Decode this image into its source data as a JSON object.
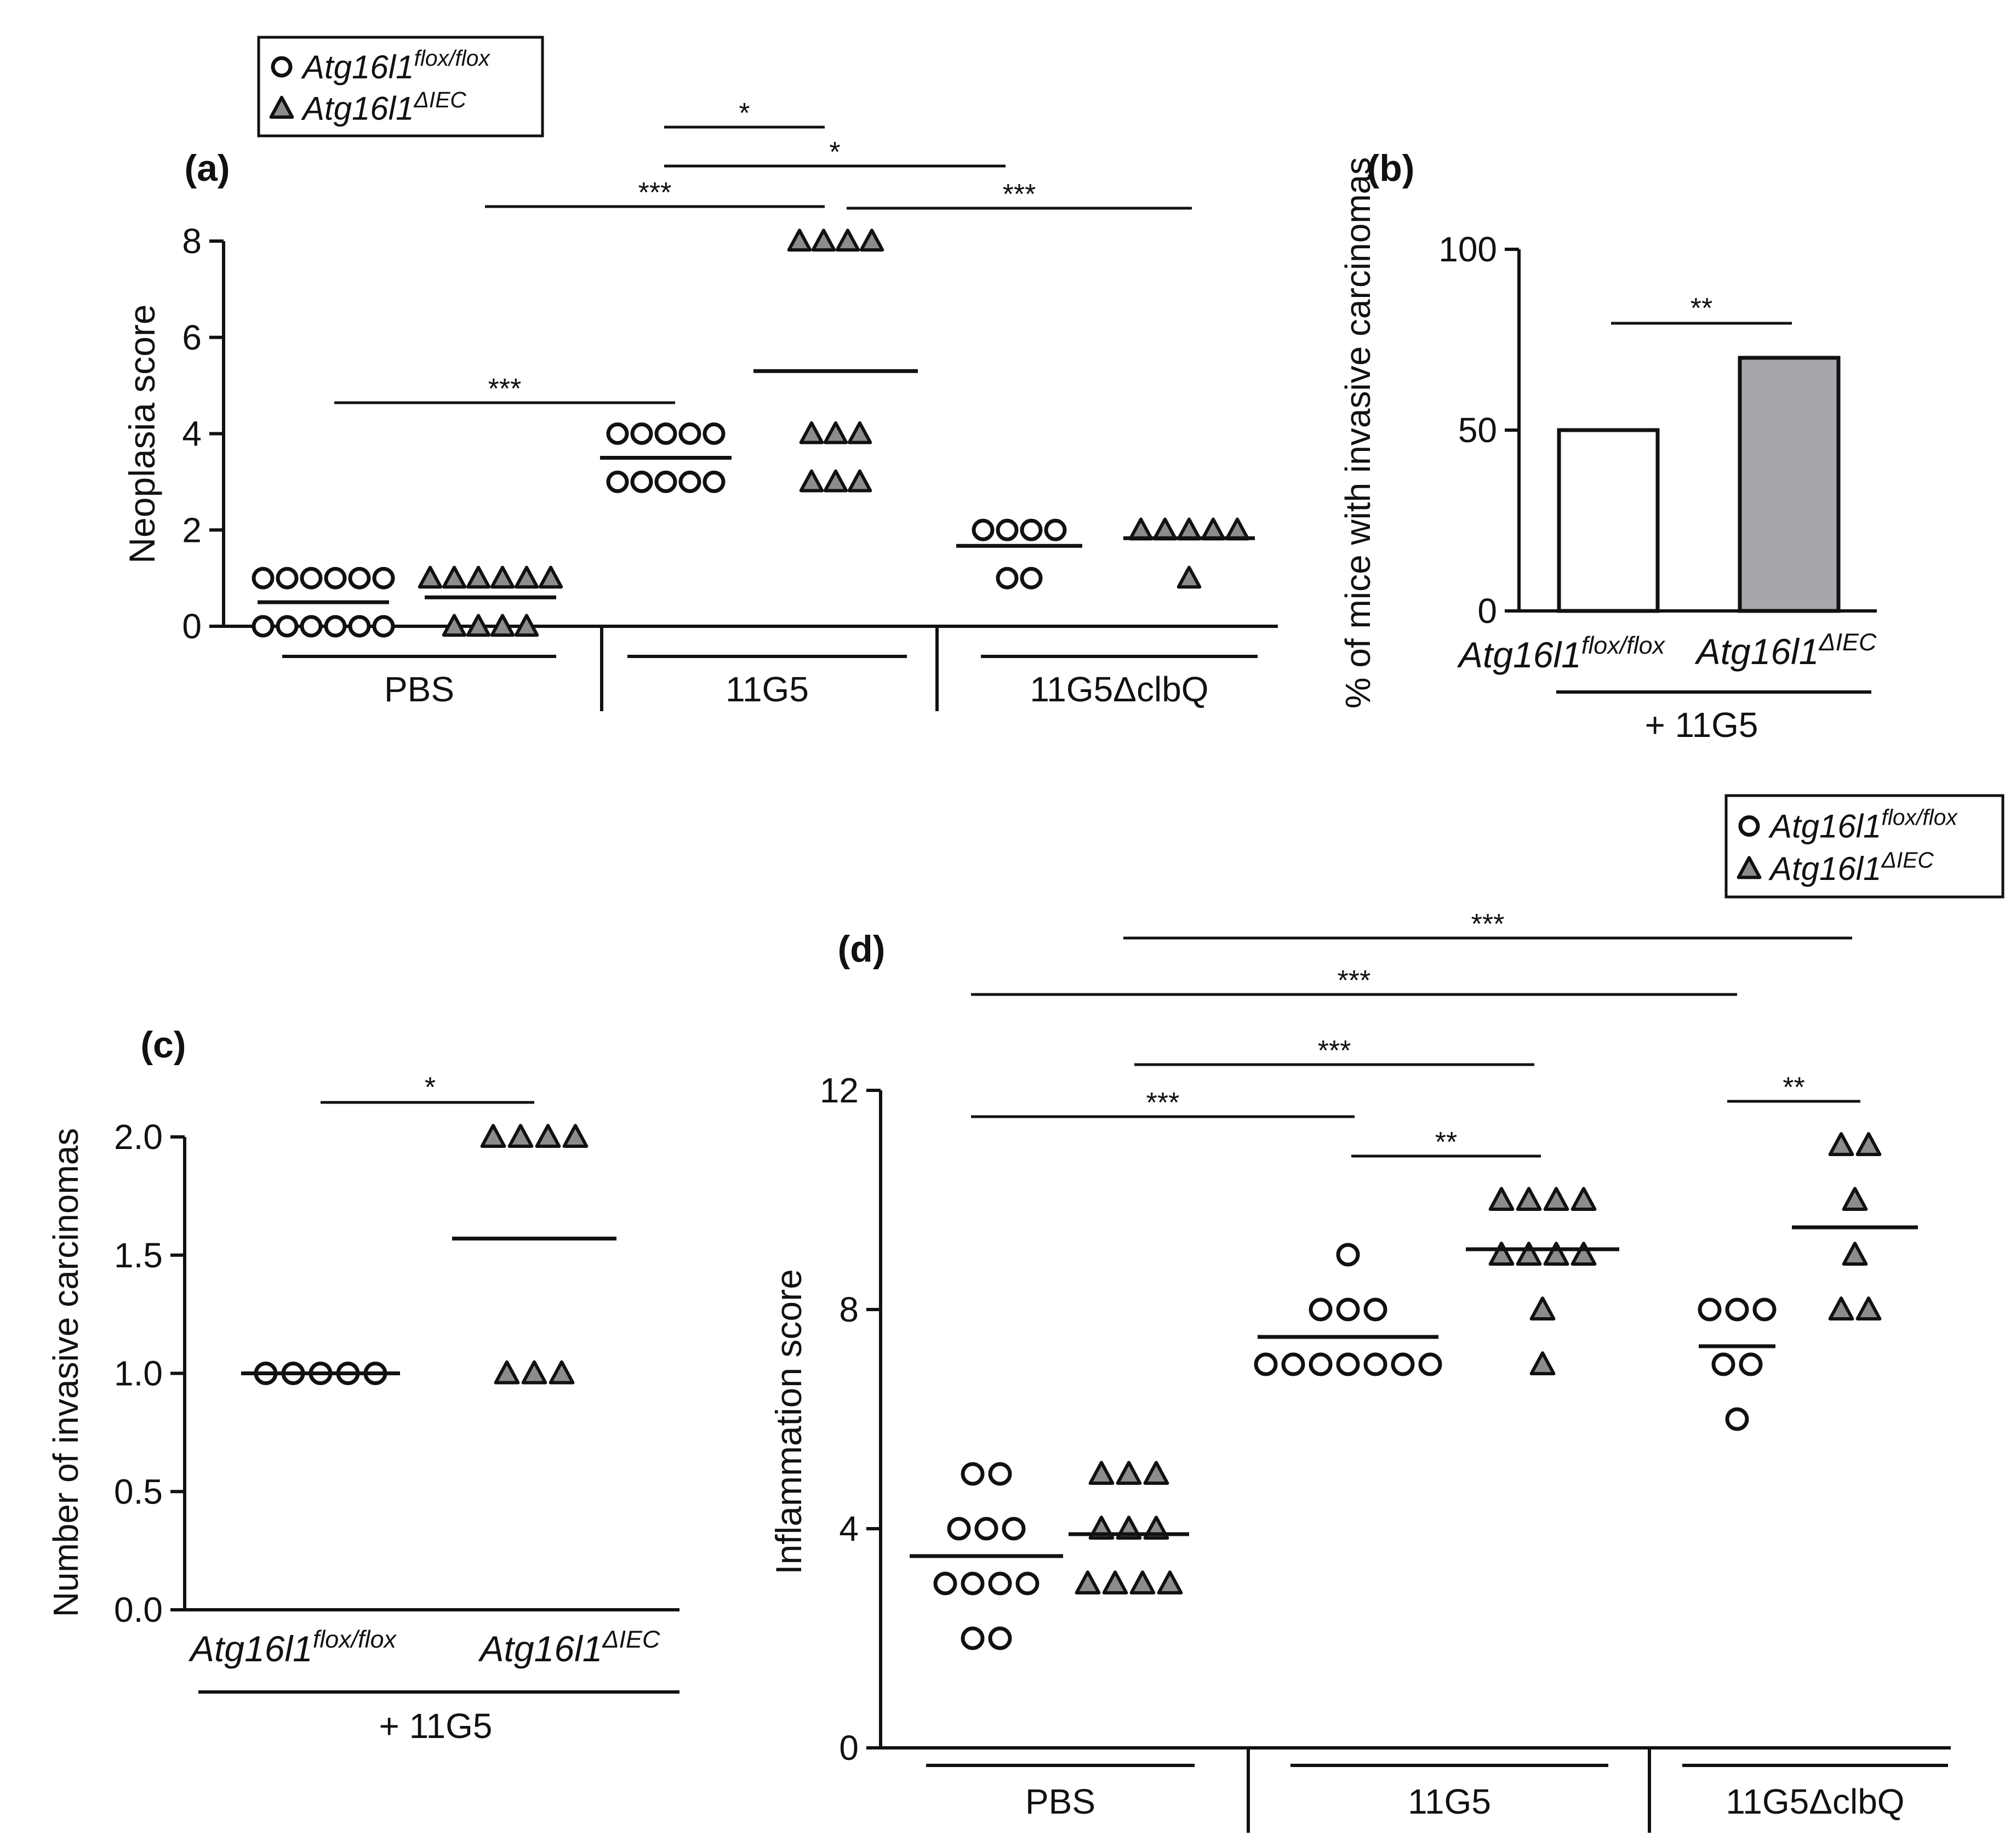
{
  "figure_title": "",
  "chart_data": [
    {
      "id": "a",
      "panel_label": "(a)",
      "type": "scatter",
      "ylabel": "Neoplasia score",
      "ylim": [
        0,
        8
      ],
      "yticks": [
        "0",
        "2",
        "4",
        "6",
        "8"
      ],
      "ytick_values": [
        0,
        2,
        4,
        6,
        8
      ],
      "groups": [
        "PBS",
        "11G5",
        "11G5ΔclbQ"
      ],
      "legend": {
        "entries": [
          {
            "marker": "circle",
            "gene": "Atg16l1",
            "sup": "flox/flox"
          },
          {
            "marker": "triangle",
            "gene": "Atg16l1",
            "sup": "ΔIEC"
          }
        ]
      },
      "series": [
        {
          "name": "Atg16l1 flox/flox – PBS",
          "marker": "circle",
          "group": 0,
          "sub": 0,
          "points": [
            {
              "y": 1,
              "n": 6
            },
            {
              "y": 0,
              "n": 6
            }
          ],
          "mean": 0.5
        },
        {
          "name": "Atg16l1 ΔIEC – PBS",
          "marker": "triangle",
          "group": 0,
          "sub": 1,
          "points": [
            {
              "y": 1,
              "n": 6
            },
            {
              "y": 0,
              "n": 4
            }
          ],
          "mean": 0.6
        },
        {
          "name": "Atg16l1 flox/flox – 11G5",
          "marker": "circle",
          "group": 1,
          "sub": 0,
          "points": [
            {
              "y": 4,
              "n": 5
            },
            {
              "y": 3,
              "n": 5
            }
          ],
          "mean": 3.5
        },
        {
          "name": "Atg16l1 ΔIEC – 11G5",
          "marker": "triangle",
          "group": 1,
          "sub": 1,
          "points": [
            {
              "y": 8,
              "n": 4
            },
            {
              "y": 4,
              "n": 3
            },
            {
              "y": 3,
              "n": 3
            }
          ],
          "mean": 5.3
        },
        {
          "name": "Atg16l1 flox/flox – 11G5ΔclbQ",
          "marker": "circle",
          "group": 2,
          "sub": 0,
          "points": [
            {
              "y": 2,
              "n": 4
            },
            {
              "y": 1,
              "n": 2
            }
          ],
          "mean": 1.67
        },
        {
          "name": "Atg16l1 ΔIEC – 11G5ΔclbQ",
          "marker": "triangle",
          "group": 2,
          "sub": 1,
          "points": [
            {
              "y": 2,
              "n": 5
            },
            {
              "y": 1,
              "n": 1
            }
          ],
          "mean": 1.83
        }
      ],
      "significance": [
        {
          "from": "PBS flox/flox",
          "to": "11G5 flox/flox",
          "label": "***"
        },
        {
          "from": "PBS ΔIEC",
          "to": "11G5 ΔIEC",
          "label": "***"
        },
        {
          "from": "11G5 flox/flox",
          "to": "11G5 ΔIEC",
          "label": "*"
        },
        {
          "from": "11G5 flox/flox",
          "to": "11G5ΔclbQ flox/flox",
          "label": "*"
        },
        {
          "from": "11G5 ΔIEC",
          "to": "11G5ΔclbQ ΔIEC",
          "label": "***"
        }
      ]
    },
    {
      "id": "b",
      "panel_label": "(b)",
      "type": "bar",
      "ylabel": "% of mice with invasive carcinomas",
      "ylim": [
        0,
        100
      ],
      "yticks": [
        "0",
        "50",
        "100"
      ],
      "ytick_values": [
        0,
        50,
        100
      ],
      "categories": [
        {
          "gene": "Atg16l1",
          "sup": "flox/flox"
        },
        {
          "gene": "Atg16l1",
          "sup": "ΔIEC"
        }
      ],
      "values": [
        50,
        70
      ],
      "colors": [
        "#ffffff",
        "#a7a7ab"
      ],
      "group_label": "+ 11G5",
      "significance": [
        {
          "label": "**"
        }
      ]
    },
    {
      "id": "c",
      "panel_label": "(c)",
      "type": "scatter",
      "ylabel": "Number of invasive carcinomas",
      "ylim": [
        0,
        2
      ],
      "yticks": [
        "0.0",
        "0.5",
        "1.0",
        "1.5",
        "2.0"
      ],
      "ytick_values": [
        0,
        0.5,
        1,
        1.5,
        2
      ],
      "categories": [
        {
          "gene": "Atg16l1",
          "sup": "flox/flox"
        },
        {
          "gene": "Atg16l1",
          "sup": "ΔIEC"
        }
      ],
      "group_label": "+ 11G5",
      "series": [
        {
          "name": "Atg16l1 flox/flox",
          "marker": "circle",
          "points": [
            {
              "y": 1,
              "n": 5
            }
          ],
          "mean": 1.0
        },
        {
          "name": "Atg16l1 ΔIEC",
          "marker": "triangle",
          "points": [
            {
              "y": 2,
              "n": 4
            },
            {
              "y": 1,
              "n": 3
            }
          ],
          "mean": 1.57
        }
      ],
      "significance": [
        {
          "label": "*"
        }
      ]
    },
    {
      "id": "d",
      "panel_label": "(d)",
      "type": "scatter",
      "ylabel": "Inflammation score",
      "ylim": [
        0,
        12
      ],
      "yticks": [
        "0",
        "4",
        "8",
        "12"
      ],
      "ytick_values": [
        0,
        4,
        8,
        12
      ],
      "groups": [
        "PBS",
        "11G5",
        "11G5ΔclbQ"
      ],
      "legend": {
        "entries": [
          {
            "marker": "circle",
            "gene": "Atg16l1",
            "sup": "flox/flox"
          },
          {
            "marker": "triangle",
            "gene": "Atg16l1",
            "sup": "ΔIEC"
          }
        ]
      },
      "series": [
        {
          "name": "Atg16l1 flox/flox – PBS",
          "marker": "circle",
          "group": 0,
          "sub": 0,
          "points": [
            {
              "y": 5,
              "n": 2
            },
            {
              "y": 4,
              "n": 3
            },
            {
              "y": 3,
              "n": 4
            },
            {
              "y": 2,
              "n": 2
            }
          ],
          "mean": 3.5
        },
        {
          "name": "Atg16l1 ΔIEC – PBS",
          "marker": "triangle",
          "group": 0,
          "sub": 1,
          "points": [
            {
              "y": 5,
              "n": 3
            },
            {
              "y": 4,
              "n": 3
            },
            {
              "y": 3,
              "n": 4
            }
          ],
          "mean": 3.9
        },
        {
          "name": "Atg16l1 flox/flox – 11G5",
          "marker": "circle",
          "group": 1,
          "sub": 0,
          "points": [
            {
              "y": 9,
              "n": 1
            },
            {
              "y": 8,
              "n": 3
            },
            {
              "y": 7,
              "n": 7
            }
          ],
          "mean": 7.5
        },
        {
          "name": "Atg16l1 ΔIEC – 11G5",
          "marker": "triangle",
          "group": 1,
          "sub": 1,
          "points": [
            {
              "y": 10,
              "n": 4
            },
            {
              "y": 9,
              "n": 4
            },
            {
              "y": 8,
              "n": 1
            },
            {
              "y": 7,
              "n": 1
            }
          ],
          "mean": 9.1
        },
        {
          "name": "Atg16l1 flox/flox – 11G5ΔclbQ",
          "marker": "circle",
          "group": 2,
          "sub": 0,
          "points": [
            {
              "y": 8,
              "n": 3
            },
            {
              "y": 7,
              "n": 2
            },
            {
              "y": 6,
              "n": 1
            }
          ],
          "mean": 7.33
        },
        {
          "name": "Atg16l1 ΔIEC – 11G5ΔclbQ",
          "marker": "triangle",
          "group": 2,
          "sub": 1,
          "points": [
            {
              "y": 11,
              "n": 2
            },
            {
              "y": 10,
              "n": 1
            },
            {
              "y": 9,
              "n": 1
            },
            {
              "y": 8,
              "n": 2
            }
          ],
          "mean": 9.5
        }
      ],
      "significance": [
        {
          "from": "PBS flox/flox",
          "to": "11G5 flox/flox",
          "label": "***"
        },
        {
          "from": "PBS ΔIEC",
          "to": "11G5 ΔIEC",
          "label": "***"
        },
        {
          "from": "11G5 flox/flox",
          "to": "11G5 ΔIEC",
          "label": "**"
        },
        {
          "from": "11G5ΔclbQ flox/flox",
          "to": "11G5ΔclbQ ΔIEC",
          "label": "**"
        },
        {
          "from": "PBS flox/flox",
          "to": "11G5ΔclbQ flox/flox",
          "label": "***"
        },
        {
          "from": "PBS ΔIEC",
          "to": "11G5ΔclbQ ΔIEC",
          "label": "***"
        }
      ]
    }
  ]
}
